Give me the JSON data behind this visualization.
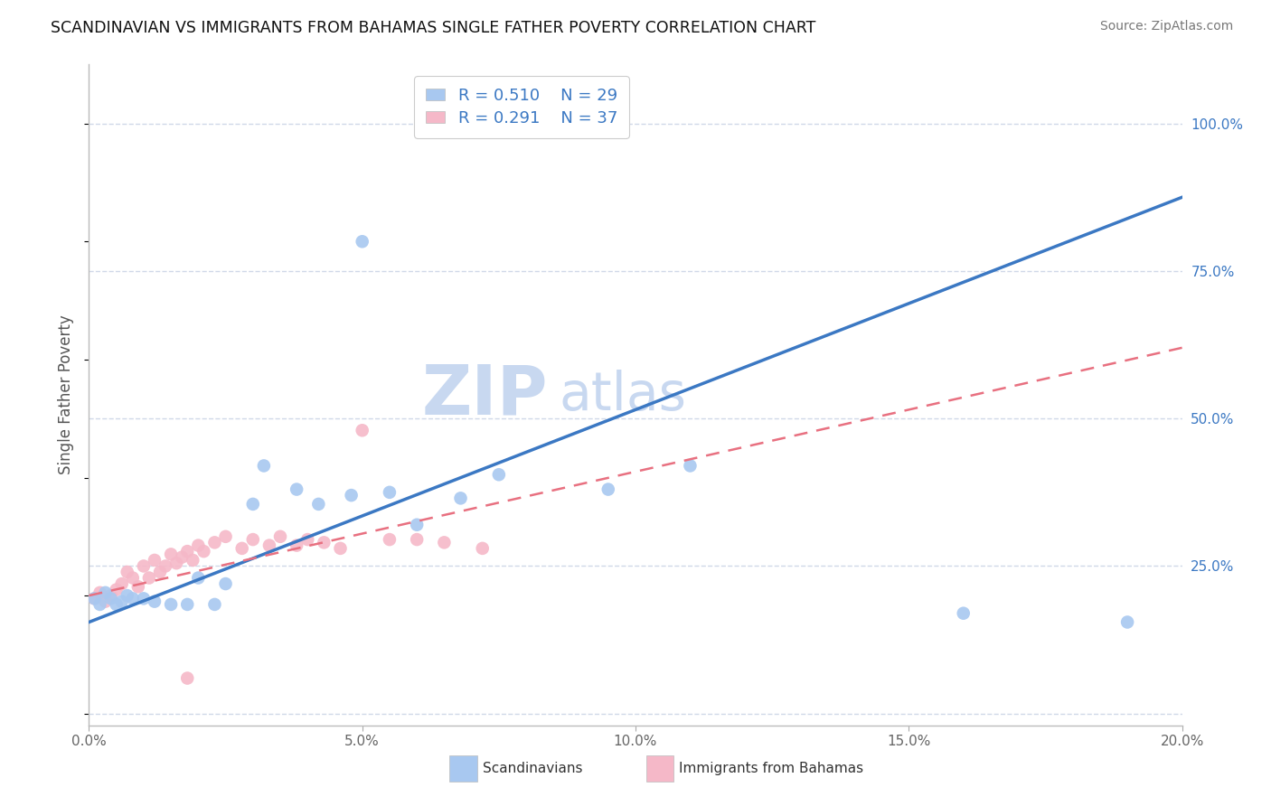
{
  "title": "SCANDINAVIAN VS IMMIGRANTS FROM BAHAMAS SINGLE FATHER POVERTY CORRELATION CHART",
  "source": "Source: ZipAtlas.com",
  "ylabel": "Single Father Poverty",
  "xlim": [
    0.0,
    0.2
  ],
  "ylim": [
    -0.02,
    1.1
  ],
  "xticks": [
    0.0,
    0.05,
    0.1,
    0.15,
    0.2
  ],
  "xtick_labels": [
    "0.0%",
    "5.0%",
    "10.0%",
    "15.0%",
    "20.0%"
  ],
  "yticks_right": [
    0.0,
    0.25,
    0.5,
    0.75,
    1.0
  ],
  "ytick_labels_right": [
    "",
    "25.0%",
    "50.0%",
    "75.0%",
    "100.0%"
  ],
  "blue_R": 0.51,
  "blue_N": 29,
  "pink_R": 0.291,
  "pink_N": 37,
  "blue_label": "Scandinavians",
  "pink_label": "Immigrants from Bahamas",
  "blue_color": "#A8C8F0",
  "pink_color": "#F5B8C8",
  "blue_line_color": "#3B78C3",
  "pink_line_color": "#E87080",
  "watermark_zip": "ZIP",
  "watermark_atlas": "atlas",
  "watermark_color": "#C8D8F0",
  "blue_x": [
    0.001,
    0.002,
    0.003,
    0.004,
    0.005,
    0.006,
    0.007,
    0.008,
    0.01,
    0.012,
    0.015,
    0.018,
    0.02,
    0.023,
    0.025,
    0.03,
    0.032,
    0.038,
    0.042,
    0.048,
    0.05,
    0.055,
    0.06,
    0.068,
    0.075,
    0.095,
    0.11,
    0.16,
    0.19
  ],
  "blue_y": [
    0.195,
    0.185,
    0.205,
    0.195,
    0.185,
    0.19,
    0.2,
    0.195,
    0.195,
    0.19,
    0.185,
    0.185,
    0.23,
    0.185,
    0.22,
    0.355,
    0.42,
    0.38,
    0.355,
    0.37,
    0.8,
    0.375,
    0.32,
    0.365,
    0.405,
    0.38,
    0.42,
    0.17,
    0.155
  ],
  "pink_x": [
    0.001,
    0.002,
    0.003,
    0.004,
    0.005,
    0.006,
    0.007,
    0.008,
    0.009,
    0.01,
    0.011,
    0.012,
    0.013,
    0.014,
    0.015,
    0.016,
    0.017,
    0.018,
    0.019,
    0.02,
    0.021,
    0.023,
    0.025,
    0.028,
    0.03,
    0.033,
    0.035,
    0.038,
    0.04,
    0.043,
    0.046,
    0.05,
    0.055,
    0.06,
    0.065,
    0.072,
    0.018
  ],
  "pink_y": [
    0.195,
    0.205,
    0.19,
    0.2,
    0.21,
    0.22,
    0.24,
    0.23,
    0.215,
    0.25,
    0.23,
    0.26,
    0.24,
    0.25,
    0.27,
    0.255,
    0.265,
    0.275,
    0.26,
    0.285,
    0.275,
    0.29,
    0.3,
    0.28,
    0.295,
    0.285,
    0.3,
    0.285,
    0.295,
    0.29,
    0.28,
    0.48,
    0.295,
    0.295,
    0.29,
    0.28,
    0.06
  ],
  "background_color": "#ffffff",
  "grid_color": "#D0D8E8",
  "blue_trendline_x0": 0.0,
  "blue_trendline_y0": 0.155,
  "blue_trendline_x1": 0.2,
  "blue_trendline_y1": 0.875,
  "pink_trendline_x0": 0.0,
  "pink_trendline_y0": 0.2,
  "pink_trendline_x1": 0.2,
  "pink_trendline_y1": 0.62
}
